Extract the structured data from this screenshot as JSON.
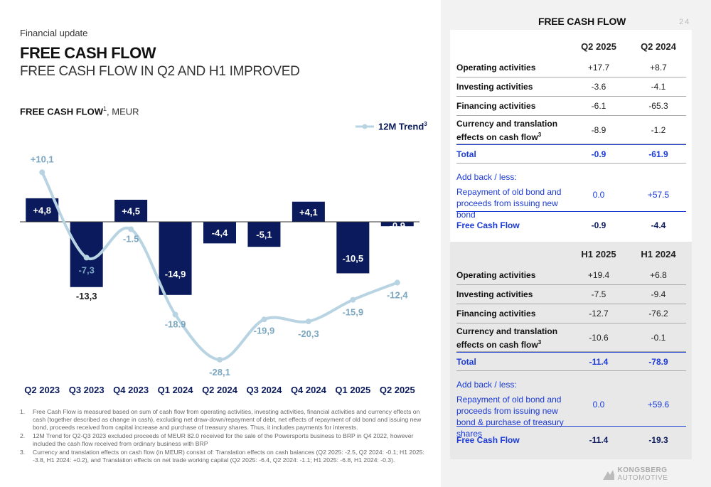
{
  "header": {
    "kicker": "Financial update",
    "title": "FREE CASH FLOW",
    "subtitle": "FREE CASH FLOW IN Q2 AND H1 IMPROVED"
  },
  "chart_header": {
    "bold": "FREE CASH FLOW",
    "sup": "1",
    "unit": ", MEUR"
  },
  "chart_data": {
    "type": "bar",
    "categories": [
      "Q2 2023",
      "Q3 2023",
      "Q4 2023",
      "Q1 2024",
      "Q2 2024",
      "Q3 2024",
      "Q4 2024",
      "Q1 2025",
      "Q2 2025"
    ],
    "series": [
      {
        "name": "",
        "type": "bar",
        "values": [
          4.8,
          -13.3,
          4.5,
          -14.9,
          -4.4,
          -5.1,
          4.1,
          -10.5,
          -0.9
        ],
        "labels": [
          "+4,8",
          "-13,3",
          "+4,5",
          "-14,9",
          "-4,4",
          "-5,1",
          "+4,1",
          "-10,5",
          "-0.9"
        ],
        "color": "#0a1a5c"
      },
      {
        "name": "12M Trend",
        "name_sup": "3",
        "type": "line",
        "values": [
          10.1,
          -7.3,
          -1.5,
          -18.9,
          -28.1,
          -19.9,
          -20.3,
          -15.9,
          -12.4
        ],
        "labels": [
          "+10,1",
          "-7,3",
          "-1.5",
          "-18.9",
          "-28,1",
          "-19,9",
          "-20,3",
          "-15,9",
          "-12,4"
        ],
        "color": "#b8d4e3",
        "label_color": "#7ba7c2"
      }
    ],
    "ylim": [
      -30,
      12
    ],
    "grid": false,
    "legend": "top-right"
  },
  "footnotes": [
    {
      "num": "1.",
      "text": "Free Cash Flow is measured based on sum of cash flow from operating activities, investing activities, financial activities and currency effects on cash (together described as change in cash), excluding net draw-down/repayment of debt, net effects of repayment of old bond and issuing new bond, proceeds received from capital increase and purchase of treasury shares. Thus, it includes payments for interests."
    },
    {
      "num": "2.",
      "text": "12M Trend for Q2-Q3 2023 excluded proceeds of MEUR 82.0 received for the sale of the Powersports business to BRP in Q4 2022, however included the cash flow received from ordinary business with BRP"
    },
    {
      "num": "3.",
      "text": "Currency and translation effects on cash flow (in MEUR) consist of: Translation effects on cash balances (Q2 2025: -2.5, Q2 2024: -0.1; H1 2025: -3.8, H1 2024: +0.2), and Translation effects on net trade working capital (Q2 2025: -6.4, Q2 2024: -1.1; H1 2025: -6.8, H1 2024: -0.3)."
    }
  ],
  "panel": {
    "title": "FREE CASH FLOW",
    "page": "24",
    "quarter": {
      "col1": "Q2 2025",
      "col2": "Q2 2024",
      "rows": [
        {
          "label": "Operating activities",
          "v1": "+17.7",
          "v2": "+8.7"
        },
        {
          "label": "Investing activities",
          "v1": "-3.6",
          "v2": "-4.1"
        },
        {
          "label": "Financing activities",
          "v1": "-6.1",
          "v2": "-65.3"
        },
        {
          "label": "Currency and translation effects on cash flow",
          "sup": "3",
          "v1": "-8.9",
          "v2": "-1.2"
        }
      ],
      "total": {
        "label": "Total",
        "v1": "-0.9",
        "v2": "-61.9"
      },
      "addback": "Add back / less:",
      "repay": {
        "label": "Repayment of old bond and proceeds from issuing new bond",
        "v1": "0.0",
        "v2": "+57.5"
      },
      "fcf": {
        "label": "Free Cash Flow",
        "v1": "-0.9",
        "v2": "-4.4"
      }
    },
    "half": {
      "col1": "H1 2025",
      "col2": "H1 2024",
      "rows": [
        {
          "label": "Operating activities",
          "v1": "+19.4",
          "v2": "+6.8"
        },
        {
          "label": "Investing activities",
          "v1": "-7.5",
          "v2": "-9.4"
        },
        {
          "label": "Financing activities",
          "v1": "-12.7",
          "v2": "-76.2"
        },
        {
          "label": "Currency and translation effects on cash flow",
          "sup": "3",
          "v1": "-10.6",
          "v2": "-0.1"
        }
      ],
      "total": {
        "label": "Total",
        "v1": "-11.4",
        "v2": "-78.9"
      },
      "addback": "Add back / less:",
      "repay": {
        "label": "Repayment of old bond and proceeds from issuing new bond & purchase of treasury shares",
        "v1": "0.0",
        "v2": "+59.6"
      },
      "fcf": {
        "label": "Free Cash Flow",
        "v1": "-11.4",
        "v2": "-19.3"
      }
    }
  },
  "logo": {
    "bold": "KONGSBERG",
    "rest": "AUTOMOTIVE"
  }
}
